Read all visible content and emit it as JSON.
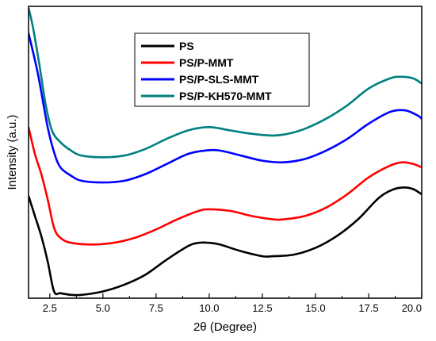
{
  "chart_data": {
    "type": "line",
    "title": "",
    "xlabel": "2θ (Degree)",
    "ylabel": "Intensity (a.u.)",
    "xlim": [
      1.5,
      20.0
    ],
    "x_ticks": [
      "2.5",
      "5.0",
      "7.5",
      "10.0",
      "12.5",
      "15.0",
      "17.5",
      "20.0"
    ],
    "y_ticks_shown": false,
    "grid": false,
    "legend_position": "top-center",
    "series": [
      {
        "name": "PS",
        "color": "#000000",
        "points": [
          [
            1.5,
            0.59
          ],
          [
            1.8,
            0.47
          ],
          [
            2.1,
            0.35
          ],
          [
            2.4,
            0.2
          ],
          [
            2.7,
            0.02
          ],
          [
            3.0,
            0.01
          ],
          [
            3.5,
            0.0
          ],
          [
            4.0,
            0.0
          ],
          [
            5.0,
            0.02
          ],
          [
            6.0,
            0.06
          ],
          [
            7.0,
            0.12
          ],
          [
            8.0,
            0.21
          ],
          [
            9.0,
            0.29
          ],
          [
            9.5,
            0.31
          ],
          [
            10.0,
            0.31
          ],
          [
            10.5,
            0.3
          ],
          [
            11.5,
            0.26
          ],
          [
            12.5,
            0.23
          ],
          [
            13.0,
            0.23
          ],
          [
            14.0,
            0.24
          ],
          [
            15.0,
            0.28
          ],
          [
            16.0,
            0.35
          ],
          [
            17.0,
            0.45
          ],
          [
            18.0,
            0.58
          ],
          [
            18.7,
            0.63
          ],
          [
            19.2,
            0.64
          ],
          [
            19.6,
            0.63
          ],
          [
            20.0,
            0.6
          ]
        ]
      },
      {
        "name": "PS/P-MMT",
        "color": "#ff0000",
        "points": [
          [
            1.5,
            1.0
          ],
          [
            1.8,
            0.84
          ],
          [
            2.1,
            0.72
          ],
          [
            2.4,
            0.57
          ],
          [
            2.7,
            0.4
          ],
          [
            3.0,
            0.34
          ],
          [
            3.5,
            0.31
          ],
          [
            4.5,
            0.3
          ],
          [
            5.5,
            0.31
          ],
          [
            6.5,
            0.34
          ],
          [
            7.5,
            0.39
          ],
          [
            8.5,
            0.45
          ],
          [
            9.5,
            0.5
          ],
          [
            10.0,
            0.51
          ],
          [
            11.0,
            0.5
          ],
          [
            12.0,
            0.47
          ],
          [
            13.0,
            0.45
          ],
          [
            13.5,
            0.45
          ],
          [
            14.5,
            0.47
          ],
          [
            15.5,
            0.52
          ],
          [
            16.5,
            0.6
          ],
          [
            17.5,
            0.7
          ],
          [
            18.5,
            0.77
          ],
          [
            19.1,
            0.79
          ],
          [
            19.6,
            0.78
          ],
          [
            20.0,
            0.76
          ]
        ]
      },
      {
        "name": "PS/P-SLS-MMT",
        "color": "#0000ff",
        "points": [
          [
            1.5,
            1.56
          ],
          [
            1.8,
            1.4
          ],
          [
            2.0,
            1.28
          ],
          [
            2.4,
            1.0
          ],
          [
            2.7,
            0.85
          ],
          [
            3.0,
            0.76
          ],
          [
            3.5,
            0.71
          ],
          [
            4.0,
            0.68
          ],
          [
            5.0,
            0.67
          ],
          [
            6.0,
            0.68
          ],
          [
            7.0,
            0.72
          ],
          [
            8.0,
            0.78
          ],
          [
            9.0,
            0.84
          ],
          [
            9.8,
            0.86
          ],
          [
            10.5,
            0.86
          ],
          [
            11.5,
            0.83
          ],
          [
            12.5,
            0.8
          ],
          [
            13.5,
            0.79
          ],
          [
            14.5,
            0.81
          ],
          [
            15.5,
            0.86
          ],
          [
            16.5,
            0.93
          ],
          [
            17.5,
            1.02
          ],
          [
            18.5,
            1.09
          ],
          [
            19.2,
            1.1
          ],
          [
            19.8,
            1.07
          ],
          [
            20.0,
            1.05
          ]
        ]
      },
      {
        "name": "PS/P-KH570-MMT",
        "color": "#008080",
        "points": [
          [
            1.5,
            1.71
          ],
          [
            1.7,
            1.6
          ],
          [
            2.0,
            1.38
          ],
          [
            2.3,
            1.14
          ],
          [
            2.6,
            0.98
          ],
          [
            3.0,
            0.91
          ],
          [
            3.5,
            0.86
          ],
          [
            4.0,
            0.83
          ],
          [
            5.0,
            0.82
          ],
          [
            6.0,
            0.83
          ],
          [
            7.0,
            0.87
          ],
          [
            8.0,
            0.93
          ],
          [
            9.0,
            0.98
          ],
          [
            10.0,
            1.0
          ],
          [
            11.0,
            0.98
          ],
          [
            12.0,
            0.96
          ],
          [
            13.0,
            0.95
          ],
          [
            13.7,
            0.96
          ],
          [
            14.5,
            0.99
          ],
          [
            15.5,
            1.05
          ],
          [
            16.5,
            1.13
          ],
          [
            17.5,
            1.23
          ],
          [
            18.5,
            1.29
          ],
          [
            19.0,
            1.3
          ],
          [
            19.6,
            1.29
          ],
          [
            20.0,
            1.26
          ]
        ]
      }
    ]
  }
}
